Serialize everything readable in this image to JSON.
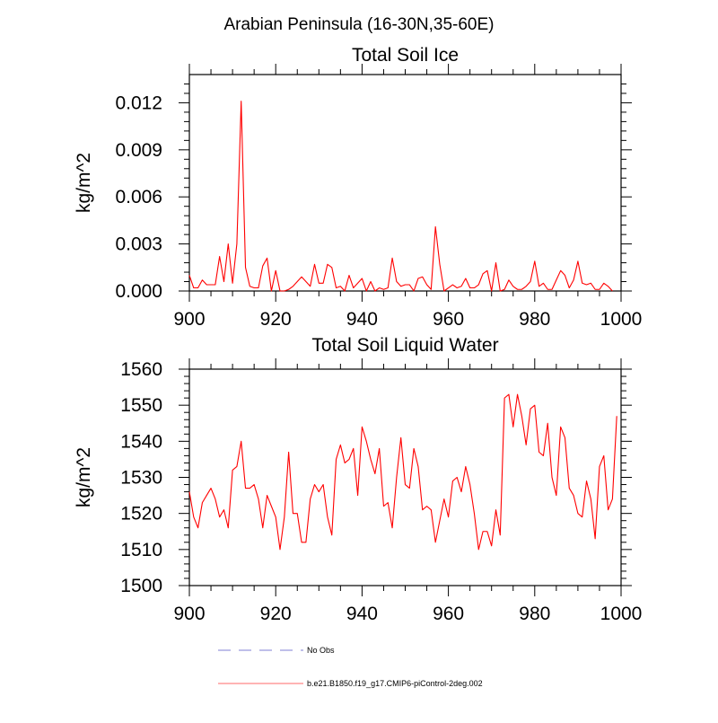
{
  "page_title": "Arabian Peninsula (16-30N,35-60E)",
  "colors": {
    "model_line": "#ff0000",
    "obs_line": "#9999dd",
    "axis": "#000000",
    "background": "#ffffff"
  },
  "legend": {
    "obs_label": "No Obs",
    "model_label": "b.e21.B1850.f19_g17.CMIP6-piControl-2deg.002"
  },
  "chart_data": [
    {
      "type": "line",
      "title": "Total Soil Ice",
      "xlabel": "",
      "ylabel": "kg/m^2",
      "xlim": [
        900,
        1000
      ],
      "ylim": [
        0,
        0.0138
      ],
      "xticks": [
        900,
        920,
        940,
        960,
        980,
        1000
      ],
      "xtick_labels": [
        "900",
        "920",
        "940",
        "960",
        "980",
        "1000"
      ],
      "yticks": [
        0,
        0.003,
        0.006,
        0.009,
        0.012
      ],
      "ytick_labels": [
        "0.000",
        "0.003",
        "0.006",
        "0.009",
        "0.012"
      ],
      "x_start": 900,
      "x_step": 1,
      "series": [
        {
          "name": "b.e21.B1850.f19_g17.CMIP6-piControl-2deg.002",
          "values": [
            0.001,
            0.0002,
            0.0002,
            0.0007,
            0.0004,
            0.0004,
            0.0004,
            0.0022,
            0.0006,
            0.003,
            0.0005,
            0.003,
            0.0121,
            0.0015,
            0.0003,
            0.0002,
            0.0002,
            0.0016,
            0.0021,
            0.0,
            0.0013,
            0.0,
            0.0,
            0.0001,
            0.0003,
            0.0006,
            0.0009,
            0.0006,
            0.0003,
            0.0017,
            0.0005,
            0.0005,
            0.0017,
            0.0015,
            0.0002,
            0.0003,
            0.0,
            0.001,
            0.0002,
            0.0005,
            0.0008,
            0.0,
            0.0006,
            0.0,
            0.0002,
            0.0001,
            0.0002,
            0.0021,
            0.0006,
            0.0003,
            0.0004,
            0.0004,
            0.0,
            0.0008,
            0.0009,
            0.0004,
            0.0001,
            0.0041,
            0.0017,
            0.0,
            0.0002,
            0.0004,
            0.0002,
            0.0003,
            0.0008,
            0.0002,
            0.0002,
            0.0004,
            0.0011,
            0.0013,
            0.0,
            0.0018,
            0.0,
            0.0001,
            0.0007,
            0.0003,
            0.0001,
            0.0001,
            0.0003,
            0.0006,
            0.0019,
            0.0003,
            0.0005,
            0.0001,
            0.0001,
            0.0007,
            0.0013,
            0.001,
            0.0002,
            0.0007,
            0.0019,
            0.0005,
            0.0004,
            0.0005,
            0.0001,
            0.0001,
            0.0005,
            0.0003,
            0.0
          ]
        }
      ]
    },
    {
      "type": "line",
      "title": "Total Soil Liquid Water",
      "xlabel": "",
      "ylabel": "kg/m^2",
      "xlim": [
        900,
        1000
      ],
      "ylim": [
        1500,
        1560
      ],
      "xticks": [
        900,
        920,
        940,
        960,
        980,
        1000
      ],
      "xtick_labels": [
        "900",
        "920",
        "940",
        "960",
        "980",
        "1000"
      ],
      "yticks": [
        1500,
        1510,
        1520,
        1530,
        1540,
        1550,
        1560
      ],
      "ytick_labels": [
        "1500",
        "1510",
        "1520",
        "1530",
        "1540",
        "1550",
        "1560"
      ],
      "x_start": 900,
      "x_step": 1,
      "series": [
        {
          "name": "b.e21.B1850.f19_g17.CMIP6-piControl-2deg.002",
          "values": [
            1526,
            1519,
            1516,
            1523,
            1525,
            1527,
            1524,
            1519,
            1521,
            1516,
            1532,
            1533,
            1540,
            1527,
            1527,
            1528,
            1524,
            1516,
            1525,
            1522,
            1519,
            1510,
            1519,
            1537,
            1520,
            1520,
            1512,
            1512,
            1524,
            1528,
            1526,
            1528,
            1519,
            1514,
            1535,
            1539,
            1534,
            1535,
            1538,
            1525,
            1544,
            1540,
            1535,
            1531,
            1538,
            1522,
            1523,
            1516,
            1530,
            1541,
            1528,
            1527,
            1538,
            1533,
            1521,
            1522,
            1521,
            1512,
            1518,
            1524,
            1519,
            1529,
            1530,
            1526,
            1533,
            1528,
            1520,
            1510,
            1515,
            1515,
            1511,
            1521,
            1514,
            1552,
            1553,
            1544,
            1553,
            1547,
            1539,
            1549,
            1550,
            1537,
            1536,
            1545,
            1530,
            1525,
            1544,
            1541,
            1527,
            1525,
            1520,
            1519,
            1529,
            1524,
            1513,
            1533,
            1536,
            1521,
            1524,
            1547
          ]
        }
      ]
    }
  ]
}
